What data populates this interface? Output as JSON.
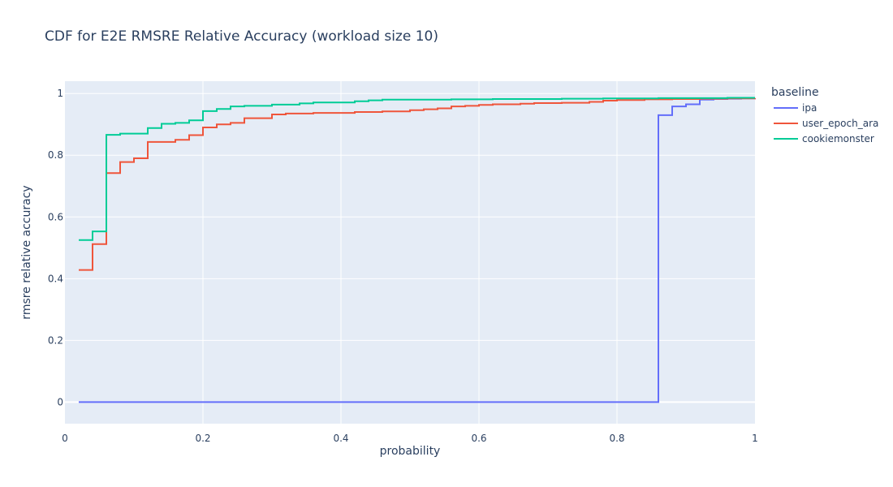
{
  "chart_data": {
    "type": "line",
    "line_shape": "step",
    "title": "CDF for E2E RMSRE Relative Accuracy (workload size 10)",
    "xlabel": "probability",
    "ylabel": "rmsre relative accuracy",
    "xlim": [
      0,
      1
    ],
    "ylim": [
      -0.07,
      1.04
    ],
    "xticks": [
      0,
      0.2,
      0.4,
      0.6,
      0.8,
      1
    ],
    "xtick_labels": [
      "0",
      "0.2",
      "0.4",
      "0.6",
      "0.8",
      "1"
    ],
    "yticks": [
      0,
      0.2,
      0.4,
      0.6,
      0.8,
      1
    ],
    "ytick_labels": [
      "0",
      "0.2",
      "0.4",
      "0.6",
      "0.8",
      "1"
    ],
    "grid": true,
    "background_color": "#E5ECF6",
    "legend": {
      "title": "baseline",
      "position": "right"
    },
    "series": [
      {
        "name": "ipa",
        "color": "#636EFA",
        "x": [
          0.02,
          0.86,
          0.88,
          0.9,
          0.92,
          0.94,
          0.96,
          0.98,
          1.0
        ],
        "y": [
          0.0,
          0.93,
          0.958,
          0.965,
          0.98,
          0.982,
          0.983,
          0.984,
          0.985
        ]
      },
      {
        "name": "user_epoch_ara",
        "color": "#EF553B",
        "x": [
          0.02,
          0.04,
          0.06,
          0.08,
          0.1,
          0.12,
          0.16,
          0.18,
          0.2,
          0.22,
          0.24,
          0.26,
          0.3,
          0.32,
          0.36,
          0.42,
          0.46,
          0.5,
          0.52,
          0.54,
          0.56,
          0.58,
          0.6,
          0.62,
          0.66,
          0.68,
          0.72,
          0.76,
          0.78,
          0.8,
          0.84,
          0.88,
          0.92,
          0.96,
          1.0
        ],
        "y": [
          0.428,
          0.512,
          0.742,
          0.778,
          0.79,
          0.843,
          0.85,
          0.865,
          0.89,
          0.9,
          0.905,
          0.92,
          0.932,
          0.935,
          0.937,
          0.94,
          0.942,
          0.946,
          0.949,
          0.952,
          0.958,
          0.96,
          0.963,
          0.965,
          0.967,
          0.969,
          0.97,
          0.973,
          0.977,
          0.979,
          0.981,
          0.982,
          0.983,
          0.984,
          0.985
        ]
      },
      {
        "name": "cookiemonster",
        "color": "#00CC96",
        "x": [
          0.02,
          0.04,
          0.06,
          0.08,
          0.12,
          0.14,
          0.16,
          0.18,
          0.2,
          0.22,
          0.24,
          0.26,
          0.3,
          0.34,
          0.36,
          0.42,
          0.44,
          0.46,
          0.56,
          0.62,
          0.72,
          0.78,
          0.86,
          0.96,
          1.0
        ],
        "y": [
          0.525,
          0.553,
          0.866,
          0.87,
          0.888,
          0.902,
          0.905,
          0.913,
          0.943,
          0.95,
          0.958,
          0.96,
          0.964,
          0.968,
          0.971,
          0.975,
          0.978,
          0.98,
          0.981,
          0.982,
          0.983,
          0.984,
          0.985,
          0.986,
          0.986
        ]
      }
    ]
  }
}
